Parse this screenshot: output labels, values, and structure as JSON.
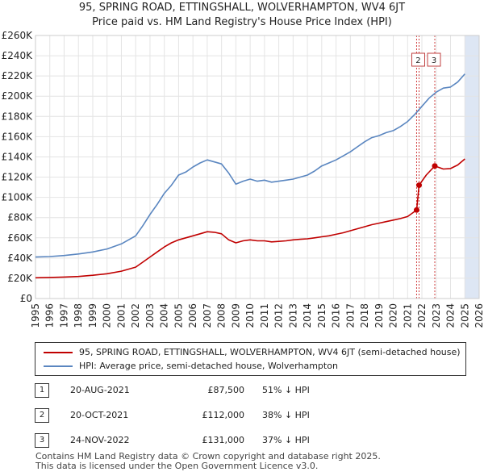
{
  "chart_data": {
    "type": "line",
    "title": "95, SPRING ROAD, ETTINGSHALL, WOLVERHAMPTON, WV4 6JT",
    "subtitle": "Price paid vs. HM Land Registry's House Price Index (HPI)",
    "xlim": [
      1995,
      2026
    ],
    "ylim": [
      0,
      260000
    ],
    "x_ticks": [
      "1995",
      "1996",
      "1997",
      "1998",
      "1999",
      "2000",
      "2001",
      "2002",
      "2003",
      "2004",
      "2005",
      "2006",
      "2007",
      "2008",
      "2009",
      "2010",
      "2011",
      "2012",
      "2013",
      "2014",
      "2015",
      "2016",
      "2017",
      "2018",
      "2019",
      "2020",
      "2021",
      "2022",
      "2023",
      "2024",
      "2025",
      "2026"
    ],
    "y_ticks": [
      {
        "value": 0,
        "label": "£0"
      },
      {
        "value": 20000,
        "label": "£20K"
      },
      {
        "value": 40000,
        "label": "£40K"
      },
      {
        "value": 60000,
        "label": "£60K"
      },
      {
        "value": 80000,
        "label": "£80K"
      },
      {
        "value": 100000,
        "label": "£100K"
      },
      {
        "value": 120000,
        "label": "£120K"
      },
      {
        "value": 140000,
        "label": "£140K"
      },
      {
        "value": 160000,
        "label": "£160K"
      },
      {
        "value": 180000,
        "label": "£180K"
      },
      {
        "value": 200000,
        "label": "£200K"
      },
      {
        "value": 220000,
        "label": "£220K"
      },
      {
        "value": 240000,
        "label": "£240K"
      },
      {
        "value": 260000,
        "label": "£260K"
      }
    ],
    "shaded_span": [
      2025.0,
      2026.0
    ],
    "series": [
      {
        "name": "HPI: Average price, semi-detached house, Wolverhampton",
        "color": "#5a86c0",
        "x": [
          1995,
          1996,
          1997,
          1998,
          1999,
          2000,
          2001,
          2002,
          2002.5,
          2003,
          2003.5,
          2004,
          2004.5,
          2005,
          2005.5,
          2006,
          2006.5,
          2007,
          2007.5,
          2008,
          2008.5,
          2009,
          2009.5,
          2010,
          2010.5,
          2011,
          2011.5,
          2012,
          2012.5,
          2013,
          2013.5,
          2014,
          2014.5,
          2015,
          2015.5,
          2016,
          2016.5,
          2017,
          2017.5,
          2018,
          2018.5,
          2019,
          2019.5,
          2020,
          2020.5,
          2021,
          2021.5,
          2022,
          2022.5,
          2023,
          2023.5,
          2024,
          2024.5,
          2025
        ],
        "values": [
          41000,
          41500,
          42500,
          44000,
          46000,
          49000,
          54000,
          62000,
          72000,
          83000,
          93000,
          104000,
          112000,
          122000,
          125000,
          130000,
          134000,
          137000,
          135000,
          133000,
          124000,
          113000,
          116000,
          118000,
          116000,
          117000,
          115000,
          116000,
          117000,
          118000,
          120000,
          122000,
          126000,
          131000,
          134000,
          137000,
          141000,
          145000,
          150000,
          155000,
          159000,
          161000,
          164000,
          166000,
          170000,
          175000,
          182000,
          190000,
          198000,
          204000,
          208000,
          209000,
          214000,
          222000
        ]
      },
      {
        "name": "95, SPRING ROAD, ETTINGSHALL, WOLVERHAMPTON, WV4 6JT (semi-detached house)",
        "color": "#c00000",
        "x": [
          1995,
          1996,
          1997,
          1998,
          1999,
          2000,
          2001,
          2002,
          2002.5,
          2003,
          2003.5,
          2004,
          2004.5,
          2005,
          2005.5,
          2006,
          2006.5,
          2007,
          2007.5,
          2008,
          2008.5,
          2009,
          2009.5,
          2010,
          2010.5,
          2011,
          2011.5,
          2012,
          2012.5,
          2013,
          2013.5,
          2014,
          2014.5,
          2015,
          2015.5,
          2016,
          2016.5,
          2017,
          2017.5,
          2018,
          2018.5,
          2019,
          2019.5,
          2020,
          2020.5,
          2021,
          2021.63,
          2021.8,
          2022.3,
          2022.9,
          2023.5,
          2024,
          2024.5,
          2025
        ],
        "values": [
          20500,
          20800,
          21200,
          21800,
          23000,
          24500,
          27000,
          31000,
          36000,
          41000,
          46000,
          51000,
          55000,
          58000,
          60000,
          62000,
          64000,
          66000,
          65500,
          64000,
          58000,
          55000,
          57000,
          58000,
          57000,
          57000,
          56000,
          56500,
          57000,
          58000,
          58500,
          59000,
          60000,
          61000,
          62000,
          63500,
          65000,
          67000,
          69000,
          71000,
          73000,
          74500,
          76000,
          77500,
          79000,
          81000,
          87500,
          112000,
          122000,
          131000,
          128000,
          128500,
          132000,
          138000
        ]
      }
    ],
    "markers": [
      {
        "label": "1",
        "x": 2021.63,
        "value": 87500,
        "show_flag": false
      },
      {
        "label": "2",
        "x": 2021.8,
        "value": 112000,
        "show_flag": true
      },
      {
        "label": "3",
        "x": 2022.9,
        "value": 131000,
        "show_flag": true
      }
    ]
  },
  "legend": {
    "property": "95, SPRING ROAD, ETTINGSHALL, WOLVERHAMPTON, WV4 6JT (semi-detached house)",
    "hpi": "HPI: Average price, semi-detached house, Wolverhampton"
  },
  "transactions": [
    {
      "num": "1",
      "date": "20-AUG-2021",
      "price": "£87,500",
      "hpi": "51% ↓ HPI"
    },
    {
      "num": "2",
      "date": "20-OCT-2021",
      "price": "£112,000",
      "hpi": "38% ↓ HPI"
    },
    {
      "num": "3",
      "date": "24-NOV-2022",
      "price": "£131,000",
      "hpi": "37% ↓ HPI"
    }
  ],
  "footer": {
    "line1": "Contains HM Land Registry data © Crown copyright and database right 2025.",
    "line2": "This data is licensed under the Open Government Licence v3.0."
  }
}
